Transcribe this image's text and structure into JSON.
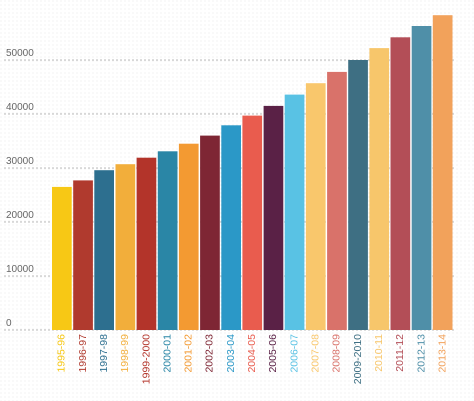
{
  "chart_data": {
    "type": "bar",
    "title": "",
    "xlabel": "",
    "ylabel": "",
    "categories": [
      "1995-96",
      "1996-97",
      "1997-98",
      "1998-99",
      "1999-2000",
      "2000-01",
      "2001-02",
      "2002-03",
      "2003-04",
      "2004-05",
      "2005-06",
      "2006-07",
      "2007-08",
      "2008-09",
      "2009-2010",
      "2010-11",
      "2011-12",
      "2012-13",
      "2013-14"
    ],
    "values": [
      26500,
      27700,
      29600,
      30700,
      31900,
      33100,
      34500,
      36000,
      37900,
      39700,
      41500,
      43600,
      45700,
      47800,
      50000,
      52200,
      54200,
      56300,
      58300
    ],
    "colors": [
      "#F7C815",
      "#B03A2E",
      "#2D6F8F",
      "#F2AE3B",
      "#B3342A",
      "#2A86A6",
      "#F39A32",
      "#7E2634",
      "#2B98C7",
      "#E95C4E",
      "#5A2146",
      "#59C2E4",
      "#F9C76C",
      "#D9726A",
      "#3E6F83",
      "#F7C66B",
      "#B34E57",
      "#4F8FA8",
      "#F2A25B"
    ],
    "y_ticks": [
      0,
      10000,
      20000,
      30000,
      40000,
      50000
    ],
    "ylim": [
      0,
      60000
    ],
    "grid": true
  }
}
